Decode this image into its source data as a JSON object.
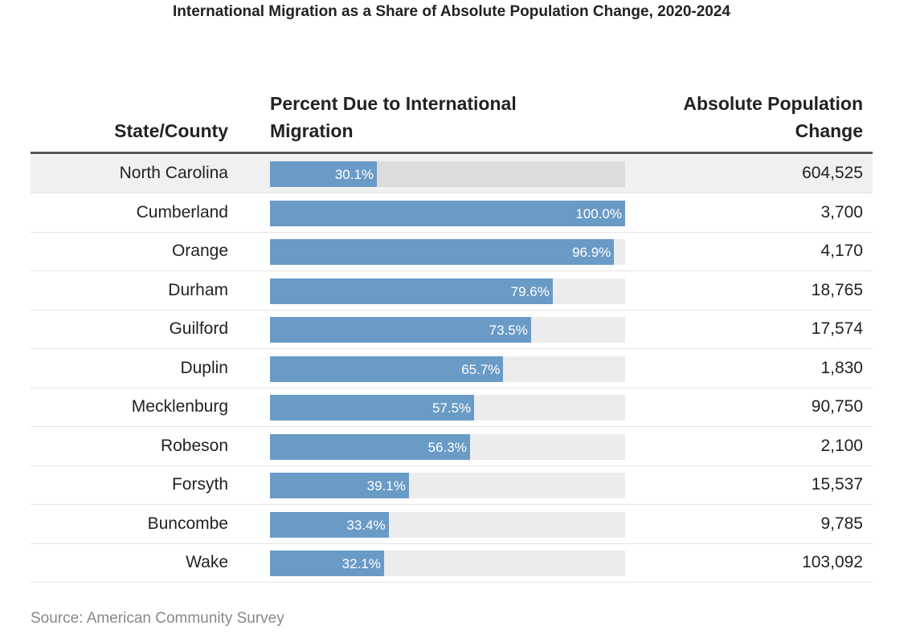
{
  "chart_data": {
    "type": "table-bar",
    "title": "International Migration as a Share of Absolute Population Change, 2020-2024",
    "columns": [
      "State/County",
      "Percent Due to International Migration",
      "Absolute Population Change"
    ],
    "categories": [
      "North Carolina",
      "Cumberland",
      "Orange",
      "Durham",
      "Guilford",
      "Duplin",
      "Mecklenburg",
      "Robeson",
      "Forsyth",
      "Buncombe",
      "Wake"
    ],
    "values": [
      30.1,
      100.0,
      96.9,
      79.6,
      73.5,
      65.7,
      57.5,
      56.3,
      39.1,
      33.4,
      32.1
    ],
    "value_labels": [
      "30.1%",
      "100.0%",
      "96.9%",
      "79.6%",
      "73.5%",
      "65.7%",
      "57.5%",
      "56.3%",
      "39.1%",
      "33.4%",
      "32.1%"
    ],
    "color": "#6a9bc7",
    "xlim": [
      0,
      100
    ],
    "population_change": {
      "values": [
        604525,
        3700,
        4170,
        18765,
        17574,
        1830,
        90750,
        2100,
        15537,
        9785,
        103092
      ],
      "value_labels": [
        "604,525",
        "3,700",
        "4,170",
        "18,765",
        "17,574",
        "1,830",
        "90,750",
        "2,100",
        "15,537",
        "9,785",
        "103,092"
      ]
    },
    "source": "Source: American Community Survey"
  }
}
